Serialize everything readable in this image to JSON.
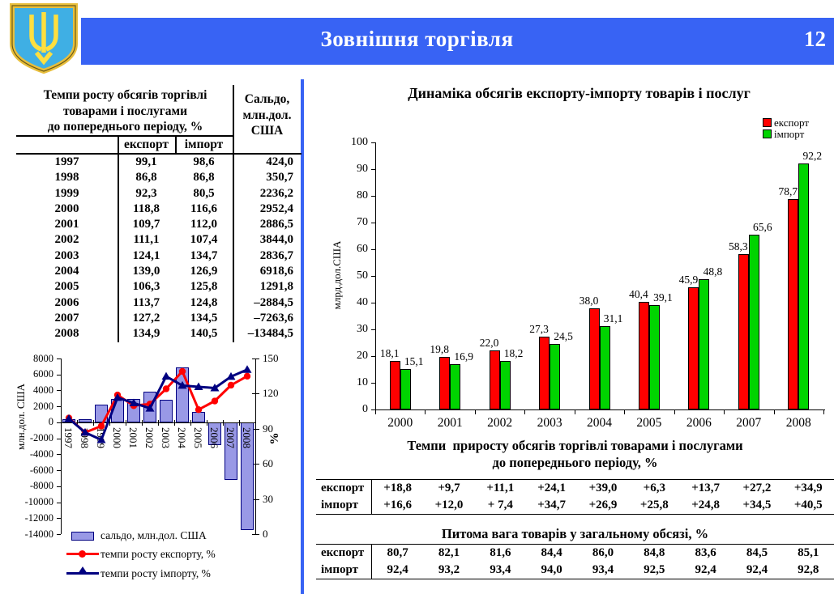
{
  "header": {
    "title": "Зовнішня торгівля",
    "page_number": "12",
    "emblem": "ukraine-trident-coat-of-arms"
  },
  "colors": {
    "banner_blue": "#3863F4",
    "export_red": "#FF0000",
    "import_green": "#00D400",
    "saldo_bar_fill": "#9999E6",
    "import_line_navy": "#000080"
  },
  "left_table": {
    "title_lines": [
      "Темпи росту обсягів торгівлі",
      "товарами і послугами",
      "до попереднього періоду, %"
    ],
    "saldo_header_lines": [
      "Сальдо,",
      "млн.дол.",
      "США"
    ],
    "col_headers": [
      "експорт",
      "імпорт"
    ],
    "rows": [
      {
        "year": "1997",
        "export": "99,1",
        "import": "98,6",
        "saldo": "424,0"
      },
      {
        "year": "1998",
        "export": "86,8",
        "import": "86,8",
        "saldo": "350,7"
      },
      {
        "year": "1999",
        "export": "92,3",
        "import": "80,5",
        "saldo": "2236,2"
      },
      {
        "year": "2000",
        "export": "118,8",
        "import": "116,6",
        "saldo": "2952,4"
      },
      {
        "year": "2001",
        "export": "109,7",
        "import": "112,0",
        "saldo": "2886,5"
      },
      {
        "year": "2002",
        "export": "111,1",
        "import": "107,4",
        "saldo": "3844,0"
      },
      {
        "year": "2003",
        "export": "124,1",
        "import": "134,7",
        "saldo": "2836,7"
      },
      {
        "year": "2004",
        "export": "139,0",
        "import": "126,9",
        "saldo": "6918,6"
      },
      {
        "year": "2005",
        "export": "106,3",
        "import": "125,8",
        "saldo": "1291,8"
      },
      {
        "year": "2006",
        "export": "113,7",
        "import": "124,8",
        "saldo": "–2884,5"
      },
      {
        "year": "2007",
        "export": "127,2",
        "import": "134,5",
        "saldo": "–7263,6"
      },
      {
        "year": "2008",
        "export": "134,9",
        "import": "140,5",
        "saldo": "–13484,5"
      }
    ]
  },
  "chart_data": [
    {
      "type": "bar-line-combo",
      "title": "",
      "categories": [
        "1997",
        "1998",
        "1999",
        "2000",
        "2001",
        "2002",
        "2003",
        "2004",
        "2005",
        "2006",
        "2007",
        "2008"
      ],
      "bar_series": {
        "name": "сальдо, млн.дол. США",
        "axis": "left",
        "values": [
          424.0,
          350.7,
          2236.2,
          2952.4,
          2886.5,
          3844.0,
          2836.7,
          6918.6,
          1291.8,
          -2884.5,
          -7263.6,
          -13484.5
        ]
      },
      "line_series": [
        {
          "name": "темпи росту експорту, %",
          "marker": "circle",
          "color": "#FF0000",
          "axis": "right",
          "values": [
            99.1,
            86.8,
            92.3,
            118.8,
            109.7,
            111.1,
            124.1,
            139.0,
            106.3,
            113.7,
            127.2,
            134.9
          ]
        },
        {
          "name": "темпи росту імпорту, %",
          "marker": "triangle",
          "color": "#000080",
          "axis": "right",
          "values": [
            98.6,
            86.8,
            80.5,
            116.6,
            112.0,
            107.4,
            134.7,
            126.9,
            125.8,
            124.8,
            134.5,
            140.5
          ]
        }
      ],
      "left_axis": {
        "label": "млн.дол. США",
        "min": -14000,
        "max": 8000,
        "ticks": [
          8000,
          6000,
          4000,
          2000,
          0,
          -2000,
          -4000,
          -6000,
          -8000,
          -10000,
          -12000,
          -14000
        ]
      },
      "right_axis": {
        "label": "%",
        "min": 0,
        "max": 150,
        "ticks": [
          150,
          120,
          90,
          60,
          30,
          0
        ]
      },
      "grid": false,
      "legend_position": "bottom"
    },
    {
      "type": "bar",
      "title": "Динаміка обсягів експорту-імпорту товарів і послуг",
      "categories": [
        "2000",
        "2001",
        "2002",
        "2003",
        "2004",
        "2005",
        "2006",
        "2007",
        "2008"
      ],
      "series": [
        {
          "name": "експорт",
          "color": "#FF0000",
          "values": [
            18.1,
            19.8,
            22.0,
            27.3,
            38.0,
            40.4,
            45.9,
            58.3,
            78.7
          ]
        },
        {
          "name": "імпорт",
          "color": "#00D400",
          "values": [
            15.1,
            16.9,
            18.2,
            24.5,
            31.1,
            39.1,
            48.8,
            65.6,
            92.2
          ]
        }
      ],
      "ylabel": "млрд.дол.США",
      "ylim": [
        0,
        100
      ],
      "ystep": 10,
      "grid": false,
      "data_labels": true,
      "legend_position": "top-right"
    }
  ],
  "growth_table": {
    "title_lines": [
      "Темпи  приросту обсягів торгівлі товарами і послугами",
      "до попереднього періоду, %"
    ],
    "rows": [
      {
        "label": "експорт",
        "values": [
          "+18,8",
          "+9,7",
          "+11,1",
          "+24,1",
          "+39,0",
          "+6,3",
          "+13,7",
          "+27,2",
          "+34,9"
        ]
      },
      {
        "label": "імпорт",
        "values": [
          "+16,6",
          "+12,0",
          "+ 7,4",
          "+34,7",
          "+26,9",
          "+25,8",
          "+24,8",
          "+34,5",
          "+40,5"
        ]
      }
    ]
  },
  "share_table": {
    "title": "Питома вага товарів у загальному обсязі, %",
    "rows": [
      {
        "label": "експорт",
        "values": [
          "80,7",
          "82,1",
          "81,6",
          "84,4",
          "86,0",
          "84,8",
          "83,6",
          "84,5",
          "85,1"
        ]
      },
      {
        "label": "імпорт",
        "values": [
          "92,4",
          "93,2",
          "93,4",
          "94,0",
          "93,4",
          "92,5",
          "92,4",
          "92,4",
          "92,8"
        ]
      }
    ]
  }
}
